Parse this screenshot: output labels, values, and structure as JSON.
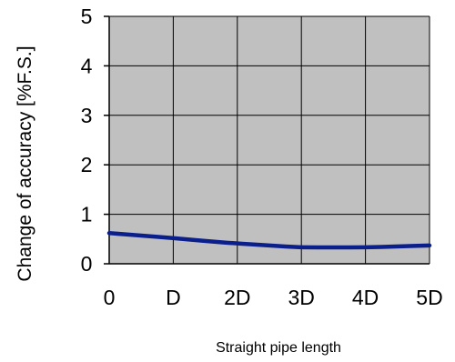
{
  "chart_data": {
    "type": "line",
    "xlabel": "Straight pipe length",
    "ylabel": "Change of accuracy [%F.S.]",
    "categories": [
      "0",
      "D",
      "2D",
      "3D",
      "4D",
      "5D"
    ],
    "yticks": [
      "0",
      "1",
      "2",
      "3",
      "4",
      "5"
    ],
    "ylim": [
      0,
      5
    ],
    "grid": true,
    "series": [
      {
        "color": "#0a1e8c",
        "x": [
          0,
          0.5,
          1,
          1.5,
          2,
          2.5,
          3,
          3.5,
          4,
          4.5,
          5
        ],
        "values": [
          0.62,
          0.57,
          0.52,
          0.46,
          0.41,
          0.37,
          0.33,
          0.33,
          0.33,
          0.35,
          0.37
        ]
      }
    ],
    "plot_background": "#c0c0c0",
    "grid_color": "#000000"
  }
}
